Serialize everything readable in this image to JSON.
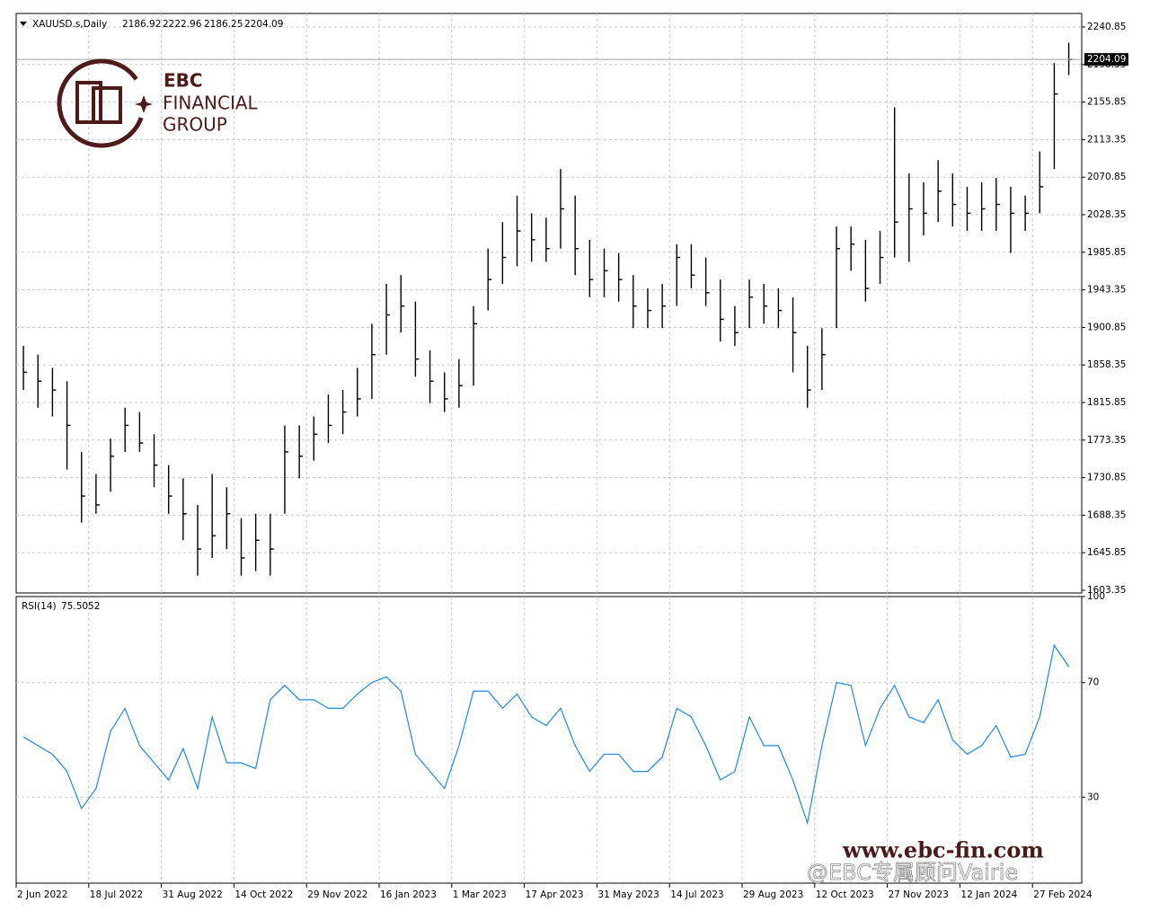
{
  "header": {
    "symbol": "XAUUSD.s,Daily",
    "open": 2186.92
  },
  "watermark": {
    "brand": "EBC",
    "line1": "FINANCIAL",
    "line2": "GROUP",
    "url": "www.ebc-fin.com",
    "credit": "@EBC专属顾问Vairie"
  },
  "chart_data": [
    {
      "type": "ohlc",
      "color": "#000000",
      "grid": true,
      "categories": [
        "2 Jun 2022",
        null,
        null,
        null,
        null,
        "18 Jul 2022",
        null,
        null,
        null,
        null,
        "31 Aug 2022",
        null,
        null,
        null,
        null,
        "14 Oct 2022",
        null,
        null,
        null,
        null,
        "29 Nov 2022",
        null,
        null,
        null,
        null,
        "16 Jan 2023",
        null,
        null,
        null,
        null,
        "1 Mar 2023",
        null,
        null,
        null,
        null,
        "17 Apr 2023",
        null,
        null,
        null,
        null,
        "31 May 2023",
        null,
        null,
        null,
        null,
        "14 Jul 2023",
        null,
        null,
        null,
        null,
        "29 Aug 2023",
        null,
        null,
        null,
        null,
        "12 Oct 2023",
        null,
        null,
        null,
        null,
        "27 Nov 2023",
        null,
        null,
        null,
        null,
        "12 Jan 2024",
        null,
        null,
        null,
        null,
        "27 Feb 2024",
        null,
        null
      ],
      "high": [
        1880,
        1870,
        1855,
        1840,
        1760,
        1735,
        1775,
        1810,
        1805,
        1780,
        1745,
        1730,
        1700,
        1735,
        1720,
        1685,
        1690,
        1690,
        1790,
        1790,
        1800,
        1825,
        1830,
        1855,
        1905,
        1950,
        1960,
        1930,
        1875,
        1850,
        1865,
        1925,
        1990,
        2020,
        2050,
        2030,
        2025,
        2080,
        2050,
        2000,
        1990,
        1985,
        1960,
        1945,
        1950,
        1995,
        1995,
        1980,
        1955,
        1925,
        1955,
        1950,
        1945,
        1935,
        1880,
        1900,
        2015,
        2015,
        2000,
        2010,
        2150,
        2075,
        2065,
        2090,
        2075,
        2060,
        2065,
        2070,
        2060,
        2050,
        2100,
        2200,
        2222.96
      ],
      "low": [
        1830,
        1810,
        1800,
        1740,
        1680,
        1690,
        1715,
        1760,
        1760,
        1720,
        1690,
        1660,
        1620,
        1640,
        1650,
        1620,
        1625,
        1620,
        1690,
        1730,
        1750,
        1770,
        1780,
        1800,
        1820,
        1870,
        1895,
        1845,
        1815,
        1805,
        1810,
        1835,
        1920,
        1950,
        1970,
        1975,
        1975,
        1990,
        1960,
        1935,
        1935,
        1930,
        1900,
        1900,
        1900,
        1925,
        1945,
        1925,
        1885,
        1880,
        1900,
        1905,
        1900,
        1850,
        1810,
        1830,
        1900,
        1965,
        1930,
        1950,
        1980,
        1975,
        2005,
        2020,
        2015,
        2010,
        2010,
        2010,
        1985,
        2010,
        2030,
        2080,
        2186.25
      ],
      "close": [
        1850,
        1840,
        1830,
        1790,
        1710,
        1700,
        1755,
        1790,
        1770,
        1745,
        1710,
        1690,
        1650,
        1665,
        1690,
        1640,
        1660,
        1650,
        1760,
        1755,
        1780,
        1790,
        1805,
        1820,
        1870,
        1915,
        1925,
        1865,
        1840,
        1820,
        1835,
        1905,
        1955,
        1980,
        2010,
        2000,
        1990,
        2035,
        1990,
        1955,
        1965,
        1955,
        1925,
        1920,
        1925,
        1980,
        1960,
        1940,
        1910,
        1895,
        1935,
        1925,
        1920,
        1895,
        1830,
        1870,
        1990,
        1995,
        1945,
        1980,
        2020,
        2035,
        2030,
        2055,
        2040,
        2030,
        2035,
        2040,
        2030,
        2030,
        2060,
        2165,
        2204.09
      ],
      "ylim": [
        1600.3,
        2256.1
      ],
      "yticks": [
        1603.35,
        1645.85,
        1688.35,
        1730.85,
        1773.35,
        1815.85,
        1858.35,
        1900.85,
        1943.35,
        1985.85,
        2028.35,
        2070.85,
        2113.35,
        2155.85,
        2198.35,
        2240.85
      ]
    },
    {
      "type": "line",
      "name": "RSI(14)",
      "color": "#1e88e5",
      "grid": true,
      "values": [
        51,
        48,
        45,
        39,
        26,
        33,
        53,
        61,
        48,
        42,
        36,
        47,
        33,
        58,
        42,
        42,
        40,
        64,
        69,
        64,
        64,
        61,
        61,
        66,
        70,
        72,
        67,
        45,
        39,
        33,
        48,
        67,
        67,
        61,
        66,
        58,
        55,
        61,
        48,
        39,
        45,
        45,
        39,
        39,
        44,
        61,
        58,
        48,
        36,
        39,
        58,
        48,
        48,
        36,
        21,
        48,
        70,
        69,
        48,
        61,
        69,
        58,
        56,
        64,
        50,
        45,
        48,
        55,
        44,
        45,
        58,
        83,
        75.5052
      ],
      "ylim": [
        0,
        100
      ],
      "yticks": [
        30,
        70,
        100
      ]
    }
  ]
}
